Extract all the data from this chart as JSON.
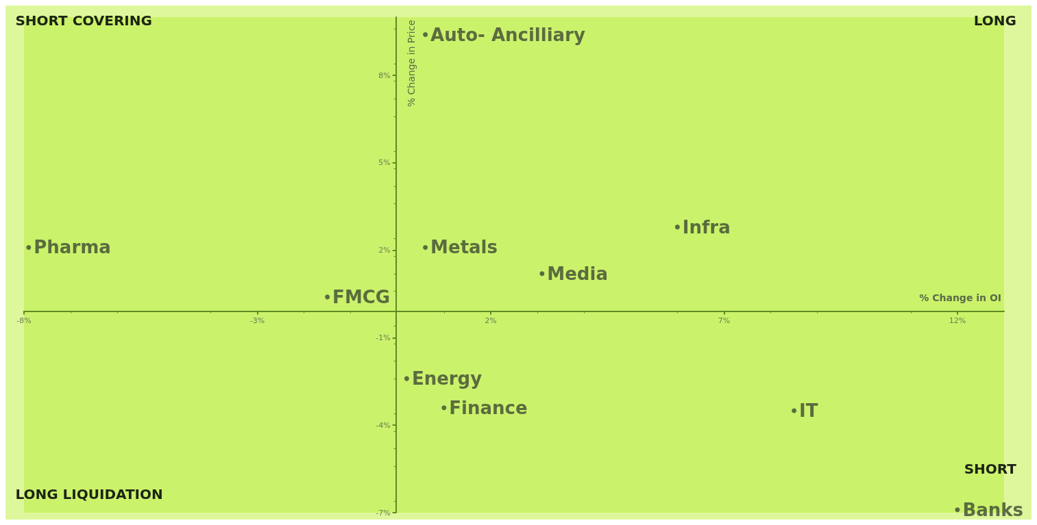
{
  "chart_data": {
    "type": "scatter",
    "xlabel": "% Change in OI",
    "ylabel": "% Change in Price",
    "xlim": [
      -8,
      13
    ],
    "ylim": [
      -7,
      10
    ],
    "xticks": [
      {
        "value": -8,
        "label": "-8%"
      },
      {
        "value": -3,
        "label": "-3%"
      },
      {
        "value": 2,
        "label": "2%"
      },
      {
        "value": 7,
        "label": "7%"
      },
      {
        "value": 12,
        "label": "12%"
      }
    ],
    "yticks": [
      {
        "value": -7,
        "label": "-7%"
      },
      {
        "value": -4,
        "label": "-4%"
      },
      {
        "value": -1,
        "label": "-1%"
      },
      {
        "value": 2,
        "label": "2%"
      },
      {
        "value": 5,
        "label": "5%"
      },
      {
        "value": 8,
        "label": "8%"
      }
    ],
    "grid": false,
    "legend": false,
    "marker": "circle",
    "annotations": [
      "SHORT COVERING",
      "LONG",
      "LONG LIQUIDATION",
      "SHORT"
    ],
    "series": [
      {
        "name": "Auto- Ancilliary",
        "color": "#3d4a33",
        "x": [
          0.6
        ],
        "values": [
          9.4
        ]
      },
      {
        "name": "Pharma",
        "color": "#3d4a33",
        "x": [
          -7.9
        ],
        "values": [
          2.1
        ]
      },
      {
        "name": "Metals",
        "color": "#3d4a33",
        "x": [
          0.6
        ],
        "values": [
          2.1
        ]
      },
      {
        "name": "Infra",
        "color": "#3d4a33",
        "x": [
          6.0
        ],
        "values": [
          2.8
        ]
      },
      {
        "name": "Media",
        "color": "#3d4a33",
        "x": [
          3.1
        ],
        "values": [
          1.2
        ]
      },
      {
        "name": "FMCG",
        "color": "#3d4a33",
        "x": [
          -1.5
        ],
        "values": [
          0.4
        ]
      },
      {
        "name": "Energy",
        "color": "#3d4a33",
        "x": [
          0.2
        ],
        "values": [
          -2.4
        ]
      },
      {
        "name": "Finance",
        "color": "#3d4a33",
        "x": [
          1.0
        ],
        "values": [
          -3.4
        ]
      },
      {
        "name": "IT",
        "color": "#3d4a33",
        "x": [
          8.5
        ],
        "values": [
          -3.5
        ]
      },
      {
        "name": "Banks",
        "color": "#3d4a33",
        "x": [
          12.0
        ],
        "values": [
          -6.9
        ]
      }
    ]
  }
}
